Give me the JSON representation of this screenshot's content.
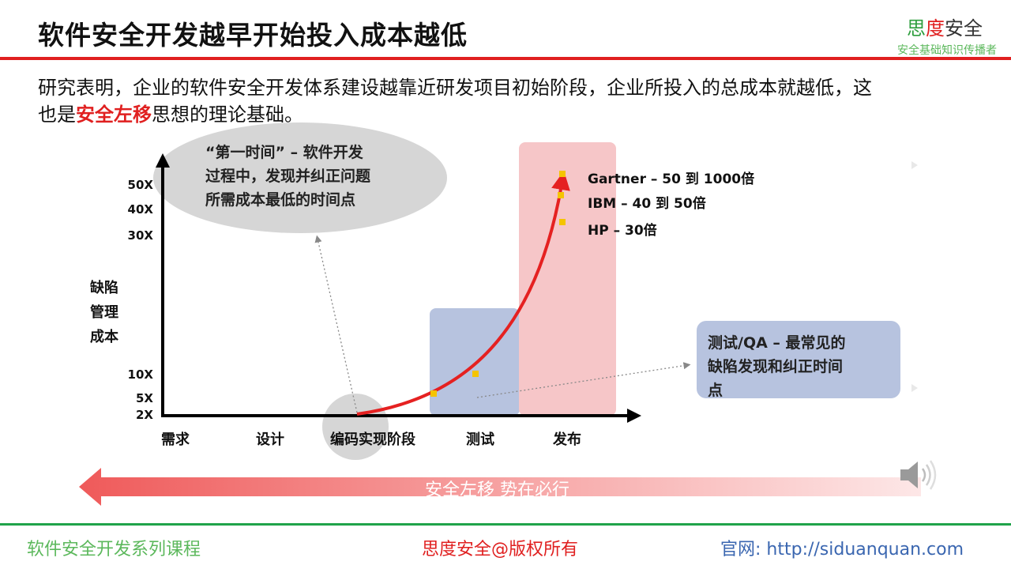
{
  "header": {
    "title": "软件安全开发越早开始投入成本越低",
    "brand_part1": "思",
    "brand_part2": "度",
    "brand_part3": "安全",
    "brand_tagline": "安全基础知识传播者"
  },
  "intro": {
    "line1": "研究表明，企业的软件安全开发体系建设越靠近研发项目初始阶段，企业所投入的总成本就越低，这",
    "line2_prefix": "也是",
    "line2_highlight": "安全左移",
    "line2_suffix": "思想的理论基础。"
  },
  "diagram": {
    "y_label": [
      "缺陷",
      "管理",
      "成本"
    ],
    "y_ticks": [
      "50X",
      "40X",
      "30X",
      "10X",
      "5X",
      "2X"
    ],
    "x_stages": [
      "需求",
      "设计",
      "编码实现阶段",
      "测试",
      "发布"
    ],
    "callout_first_time": [
      "“第一时间” – 软件开发",
      "过程中，发现并纠正问题",
      "所需成本最低的时间点"
    ],
    "callout_testing": [
      "测试/QA – 最常见的",
      "缺陷发现和纠正时间",
      "点"
    ],
    "release_costs": [
      "Gartner – 50  到  1000倍",
      "IBM – 40  到  50倍",
      "HP – 30倍"
    ],
    "colors": {
      "curve": "#e52121",
      "test_box": "#b7c3df",
      "release_box": "#f6c6c8",
      "ellipse": "#d6d6d6",
      "marker": "#f5c400"
    }
  },
  "banner": {
    "text": "安全左移  势在必行"
  },
  "footer": {
    "course": "软件安全开发系列课程",
    "copyright": "思度安全@版权所有",
    "website": "官网: http://siduanquan.com"
  }
}
